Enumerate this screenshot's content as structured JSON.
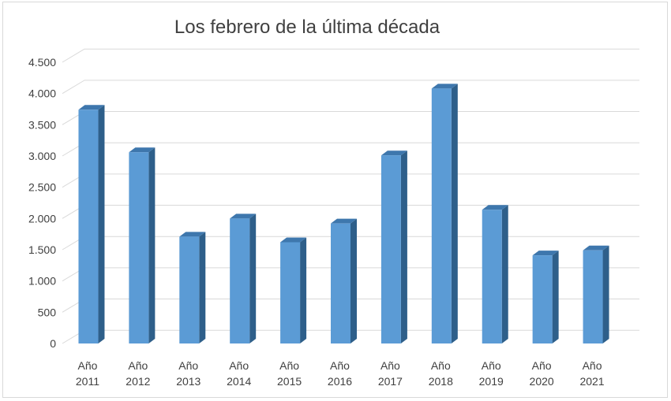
{
  "chart_data": {
    "type": "bar",
    "title": "Los febrero de la última década",
    "categories": [
      "Año 2011",
      "Año 2012",
      "Año 2013",
      "Año 2014",
      "Año 2015",
      "Año 2016",
      "Año 2017",
      "Año 2018",
      "Año 2019",
      "Año 2020",
      "Año 2021"
    ],
    "category_lines": [
      [
        "Año",
        "2011"
      ],
      [
        "Año",
        "2012"
      ],
      [
        "Año",
        "2013"
      ],
      [
        "Año",
        "2014"
      ],
      [
        "Año",
        "2015"
      ],
      [
        "Año",
        "2016"
      ],
      [
        "Año",
        "2017"
      ],
      [
        "Año",
        "2018"
      ],
      [
        "Año",
        "2019"
      ],
      [
        "Año",
        "2020"
      ],
      [
        "Año",
        "2021"
      ]
    ],
    "values": [
      3740,
      3060,
      1710,
      2000,
      1620,
      1920,
      3010,
      4080,
      2140,
      1410,
      1490
    ],
    "ylim": [
      0,
      4500
    ],
    "yticks": [
      0,
      500,
      1000,
      1500,
      2000,
      2500,
      3000,
      3500,
      4000,
      4500
    ],
    "ytick_labels": [
      "0",
      "500",
      "1.000",
      "1.500",
      "2.000",
      "2.500",
      "3.000",
      "3.500",
      "4.000",
      "4.500"
    ],
    "xlabel": "",
    "ylabel": "",
    "grid": true,
    "legend": "none",
    "colors": {
      "bar_front": "#5b9bd5",
      "bar_side": "#2e5f8a",
      "bar_top": "#3e77ad",
      "grid": "#d9d9d9"
    }
  }
}
